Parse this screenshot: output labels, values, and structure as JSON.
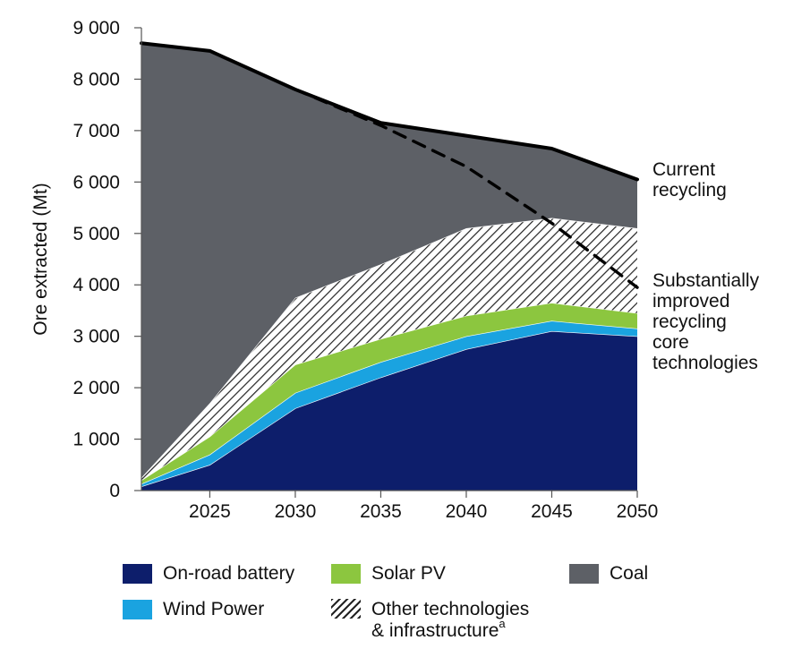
{
  "chart_data": {
    "type": "area",
    "stacked": true,
    "title": "",
    "xlabel": "",
    "ylabel": "Ore extracted (Mt)",
    "ylim": [
      0,
      9000
    ],
    "xlim": [
      2021,
      2050
    ],
    "x_ticks": [
      "2025",
      "2030",
      "2035",
      "2040",
      "2045",
      "2050"
    ],
    "y_ticks": [
      "0",
      "1 000",
      "2 000",
      "3 000",
      "4 000",
      "5 000",
      "6 000",
      "7 000",
      "8 000",
      "9 000"
    ],
    "grid": false,
    "legend_position": "bottom",
    "x": [
      2021,
      2025,
      2030,
      2035,
      2040,
      2045,
      2050
    ],
    "series": [
      {
        "name": "On-road battery",
        "color": "#0d1e6b",
        "values": [
          80,
          500,
          1600,
          2200,
          2750,
          3100,
          3000
        ]
      },
      {
        "name": "Wind Power",
        "color": "#1aa3e0",
        "values": [
          50,
          200,
          300,
          300,
          250,
          200,
          150
        ]
      },
      {
        "name": "Solar PV",
        "color": "#8cc63f",
        "values": [
          70,
          350,
          550,
          450,
          400,
          350,
          300
        ]
      },
      {
        "name": "Other technologies",
        "name_line2": "& infrastructure",
        "name_superscript": "a",
        "color": "#ffffff",
        "pattern": "hatch",
        "values": [
          50,
          650,
          1300,
          1450,
          1700,
          1650,
          1650
        ]
      },
      {
        "name": "Coal",
        "color": "#5d6066",
        "values": [
          8450,
          6850,
          4050,
          2750,
          1800,
          1350,
          950
        ]
      }
    ],
    "lines": [
      {
        "label": "Current recycling",
        "label_lines": [
          "Current",
          "recycling"
        ],
        "style": "solid",
        "x": [
          2021,
          2025,
          2030,
          2035,
          2040,
          2045,
          2050
        ],
        "values": [
          8700,
          8550,
          7800,
          7150,
          6900,
          6650,
          6050
        ]
      },
      {
        "label": "Substantially improved recycling core technologies",
        "label_lines": [
          "Substantially",
          "improved",
          "recycling",
          "core",
          "technologies"
        ],
        "style": "dashed",
        "x": [
          2030,
          2035,
          2040,
          2045,
          2050
        ],
        "values": [
          7800,
          7100,
          6300,
          5200,
          3950
        ]
      }
    ]
  }
}
